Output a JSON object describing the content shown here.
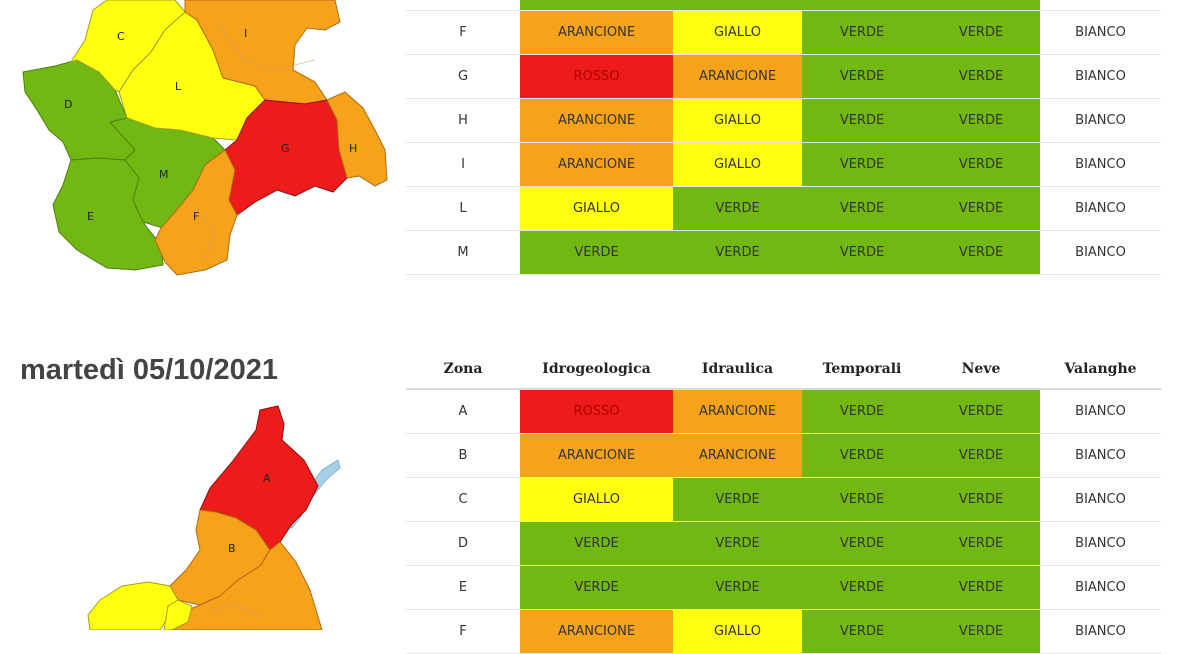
{
  "colors": {
    "ROSSO": "#ee1b1b",
    "ARANCIONE": "#f7a21b",
    "GIALLO": "#ffff10",
    "VERDE": "#72b813",
    "BIANCO": "#ffffff"
  },
  "map_top": {
    "zones": {
      "C": "C",
      "I": "I",
      "D": "D",
      "L": "L",
      "G": "G",
      "H": "H",
      "M": "M",
      "E": "E",
      "F": "F"
    }
  },
  "map_bottom": {
    "zones": {
      "A": "A",
      "B": "B"
    }
  },
  "table_top": {
    "rows": [
      {
        "zona": "F",
        "idrogeologica": "ARANCIONE",
        "idraulica": "GIALLO",
        "temporali": "VERDE",
        "neve": "VERDE",
        "valanghe": "BIANCO"
      },
      {
        "zona": "G",
        "idrogeologica": "ROSSO",
        "idraulica": "ARANCIONE",
        "temporali": "VERDE",
        "neve": "VERDE",
        "valanghe": "BIANCO"
      },
      {
        "zona": "H",
        "idrogeologica": "ARANCIONE",
        "idraulica": "GIALLO",
        "temporali": "VERDE",
        "neve": "VERDE",
        "valanghe": "BIANCO"
      },
      {
        "zona": "I",
        "idrogeologica": "ARANCIONE",
        "idraulica": "GIALLO",
        "temporali": "VERDE",
        "neve": "VERDE",
        "valanghe": "BIANCO"
      },
      {
        "zona": "L",
        "idrogeologica": "GIALLO",
        "idraulica": "VERDE",
        "temporali": "VERDE",
        "neve": "VERDE",
        "valanghe": "BIANCO"
      },
      {
        "zona": "M",
        "idrogeologica": "VERDE",
        "idraulica": "VERDE",
        "temporali": "VERDE",
        "neve": "VERDE",
        "valanghe": "BIANCO"
      }
    ]
  },
  "day2": {
    "title": "martedì 05/10/2021",
    "headers": {
      "zona": "Zona",
      "idrogeologica": "Idrogeologica",
      "idraulica": "Idraulica",
      "temporali": "Temporali",
      "neve": "Neve",
      "valanghe": "Valanghe"
    },
    "rows": [
      {
        "zona": "A",
        "idrogeologica": "ROSSO",
        "idraulica": "ARANCIONE",
        "temporali": "VERDE",
        "neve": "VERDE",
        "valanghe": "BIANCO"
      },
      {
        "zona": "B",
        "idrogeologica": "ARANCIONE",
        "idraulica": "ARANCIONE",
        "temporali": "VERDE",
        "neve": "VERDE",
        "valanghe": "BIANCO"
      },
      {
        "zona": "C",
        "idrogeologica": "GIALLO",
        "idraulica": "VERDE",
        "temporali": "VERDE",
        "neve": "VERDE",
        "valanghe": "BIANCO"
      },
      {
        "zona": "D",
        "idrogeologica": "VERDE",
        "idraulica": "VERDE",
        "temporali": "VERDE",
        "neve": "VERDE",
        "valanghe": "BIANCO"
      },
      {
        "zona": "E",
        "idrogeologica": "VERDE",
        "idraulica": "VERDE",
        "temporali": "VERDE",
        "neve": "VERDE",
        "valanghe": "BIANCO"
      },
      {
        "zona": "F",
        "idrogeologica": "ARANCIONE",
        "idraulica": "GIALLO",
        "temporali": "VERDE",
        "neve": "VERDE",
        "valanghe": "BIANCO"
      }
    ]
  }
}
